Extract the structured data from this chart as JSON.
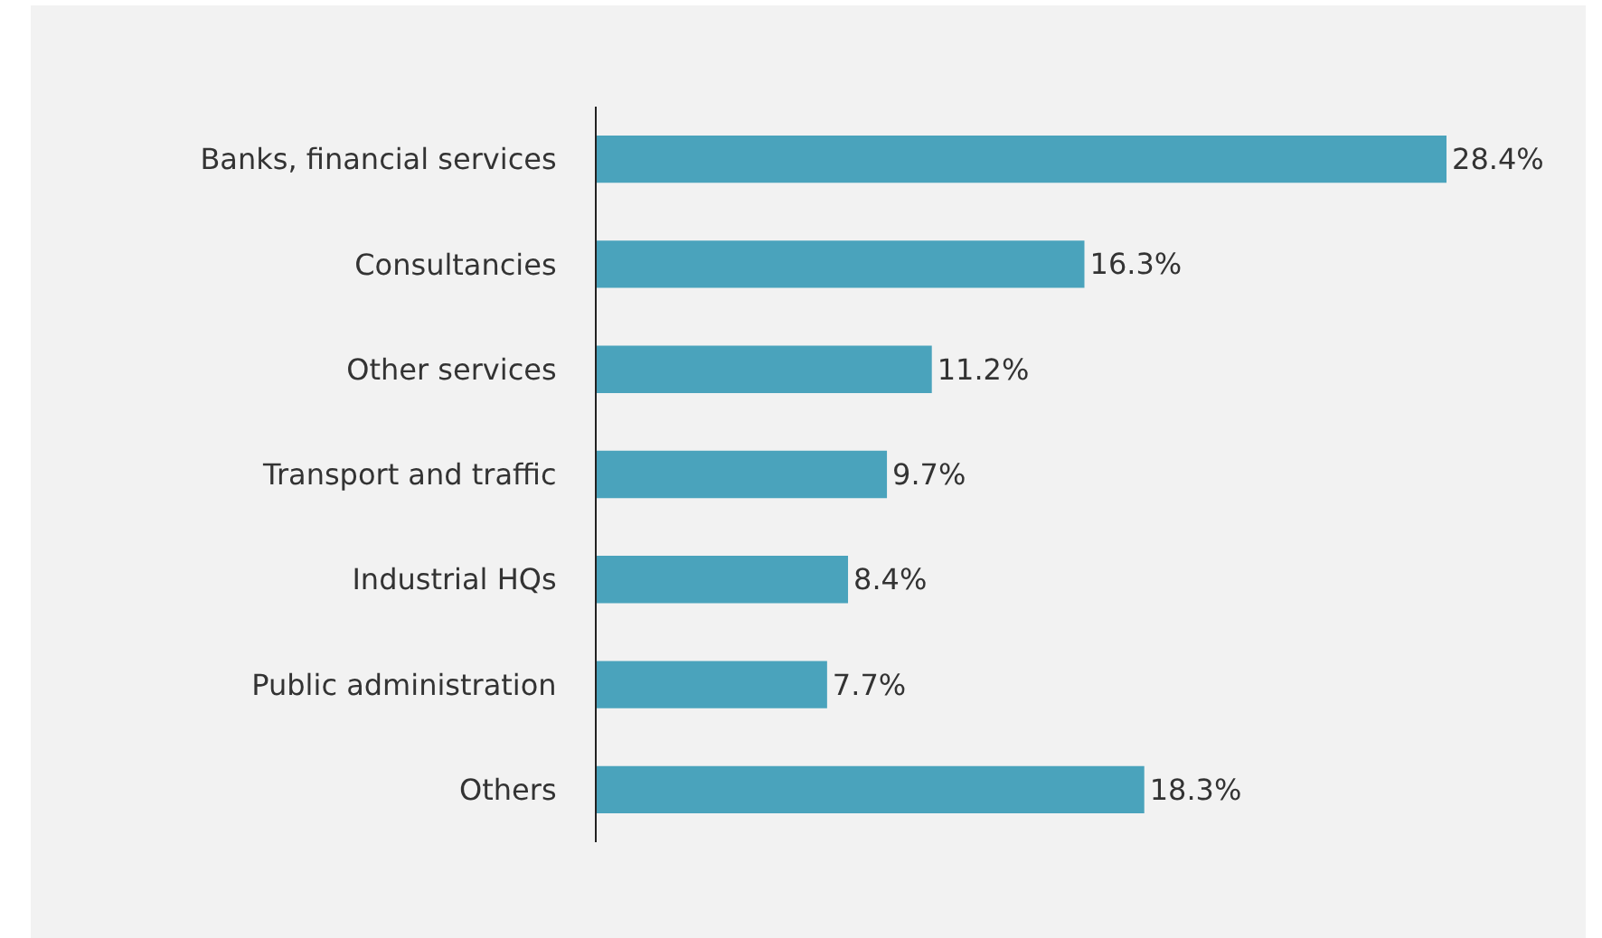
{
  "chart_data": {
    "type": "bar",
    "orientation": "horizontal",
    "categories": [
      "Banks, financial services",
      "Consultancies",
      "Other services",
      "Transport and traffic",
      "Industrial HQs",
      "Public administration",
      "Others"
    ],
    "values": [
      28.4,
      16.3,
      11.2,
      9.7,
      8.4,
      7.7,
      18.3
    ],
    "value_labels": [
      "28.4%",
      "16.3%",
      "11.2%",
      "9.7%",
      "8.4%",
      "7.7%",
      "18.3%"
    ],
    "color": "#4aa3bc"
  }
}
